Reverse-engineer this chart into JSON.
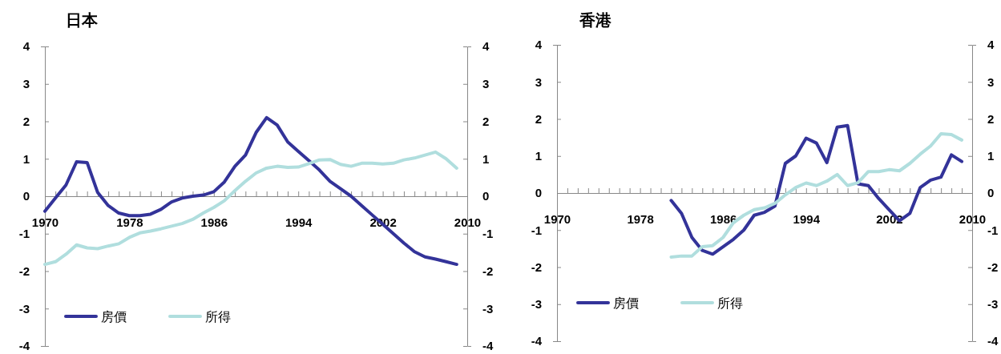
{
  "chart_data": [
    {
      "type": "line",
      "title": "日本",
      "x": [
        1970,
        1971,
        1972,
        1973,
        1974,
        1975,
        1976,
        1977,
        1978,
        1979,
        1980,
        1981,
        1982,
        1983,
        1984,
        1985,
        1986,
        1987,
        1988,
        1989,
        1990,
        1991,
        1992,
        1993,
        1994,
        1995,
        1996,
        1997,
        1998,
        1999,
        2000,
        2001,
        2002,
        2003,
        2004,
        2005,
        2006,
        2007,
        2008,
        2009
      ],
      "series": [
        {
          "name": "房價",
          "color": "#333399",
          "values": [
            -0.4,
            -0.05,
            0.3,
            0.92,
            0.9,
            0.1,
            -0.25,
            -0.45,
            -0.52,
            -0.52,
            -0.48,
            -0.35,
            -0.15,
            -0.05,
            0.0,
            0.03,
            0.12,
            0.38,
            0.8,
            1.1,
            1.7,
            2.1,
            1.9,
            1.45,
            1.2,
            0.95,
            0.7,
            0.4,
            0.2,
            0.0,
            -0.25,
            -0.5,
            -0.75,
            -1.0,
            -1.25,
            -1.48,
            -1.62,
            -1.68,
            -1.75,
            -1.82
          ]
        },
        {
          "name": "所得",
          "color": "#b0dede",
          "values": [
            -1.82,
            -1.75,
            -1.55,
            -1.3,
            -1.38,
            -1.4,
            -1.33,
            -1.27,
            -1.1,
            -0.98,
            -0.93,
            -0.87,
            -0.8,
            -0.73,
            -0.62,
            -0.45,
            -0.3,
            -0.12,
            0.15,
            0.4,
            0.62,
            0.75,
            0.8,
            0.77,
            0.78,
            0.87,
            0.97,
            0.98,
            0.85,
            0.8,
            0.88,
            0.88,
            0.86,
            0.88,
            0.97,
            1.02,
            1.1,
            1.18,
            1.0,
            0.75
          ]
        }
      ],
      "xlim": [
        1970,
        2010
      ],
      "xticks": [
        1970,
        {
          "value": 1971,
          "label": null
        },
        {
          "value": 1972,
          "label": null
        },
        {
          "value": 1973,
          "label": null
        },
        {
          "value": 1974,
          "label": null
        },
        {
          "value": 1975,
          "label": null
        },
        {
          "value": 1976,
          "label": null
        },
        {
          "value": 1977,
          "label": null
        },
        1978,
        {
          "value": 1979,
          "label": null
        },
        {
          "value": 1980,
          "label": null
        },
        {
          "value": 1981,
          "label": null
        },
        {
          "value": 1982,
          "label": null
        },
        {
          "value": 1983,
          "label": null
        },
        {
          "value": 1984,
          "label": null
        },
        {
          "value": 1985,
          "label": null
        },
        1986,
        {
          "value": 1987,
          "label": null
        },
        {
          "value": 1988,
          "label": null
        },
        {
          "value": 1989,
          "label": null
        },
        {
          "value": 1990,
          "label": null
        },
        {
          "value": 1991,
          "label": null
        },
        {
          "value": 1992,
          "label": null
        },
        {
          "value": 1993,
          "label": null
        },
        1994,
        {
          "value": 1995,
          "label": null
        },
        {
          "value": 1996,
          "label": null
        },
        {
          "value": 1997,
          "label": null
        },
        {
          "value": 1998,
          "label": null
        },
        {
          "value": 1999,
          "label": null
        },
        {
          "value": 2000,
          "label": null
        },
        {
          "value": 2001,
          "label": null
        },
        2002,
        {
          "value": 2003,
          "label": null
        },
        {
          "value": 2004,
          "label": null
        },
        {
          "value": 2005,
          "label": null
        },
        {
          "value": 2006,
          "label": null
        },
        {
          "value": 2007,
          "label": null
        },
        {
          "value": 2008,
          "label": null
        },
        {
          "value": 2009,
          "label": null
        },
        2010
      ],
      "ylim": [
        -4,
        4
      ],
      "yticks": [
        -4,
        -3,
        -2,
        -1,
        0,
        1,
        2,
        3,
        4
      ],
      "y2lim": [
        -4,
        4
      ],
      "y2ticks": [
        -4,
        -3,
        -2,
        -1,
        0,
        1,
        2,
        3,
        4
      ],
      "grid": false,
      "legend": "bottom left",
      "marker": "none",
      "line_style": "solid"
    },
    {
      "type": "line",
      "title": "香港",
      "x": [
        1981,
        1982,
        1983,
        1984,
        1985,
        1986,
        1987,
        1988,
        1989,
        1990,
        1991,
        1992,
        1993,
        1994,
        1995,
        1996,
        1997,
        1998,
        1999,
        2000,
        2001,
        2002,
        2003,
        2004,
        2005,
        2006,
        2007,
        2008,
        2009
      ],
      "series": [
        {
          "name": "房價",
          "color": "#333399",
          "values": [
            -0.2,
            -0.55,
            -1.2,
            -1.55,
            -1.65,
            -1.45,
            -1.25,
            -1.0,
            -0.6,
            -0.52,
            -0.35,
            0.8,
            1.0,
            1.48,
            1.35,
            0.82,
            1.78,
            1.82,
            0.25,
            0.2,
            -0.15,
            -0.45,
            -0.75,
            -0.55,
            0.15,
            0.35,
            0.43,
            1.03,
            0.85
          ]
        },
        {
          "name": "所得",
          "color": "#b0dede",
          "values": [
            -1.73,
            -1.7,
            -1.7,
            -1.45,
            -1.42,
            -1.2,
            -0.8,
            -0.6,
            -0.45,
            -0.4,
            -0.28,
            -0.05,
            0.15,
            0.27,
            0.2,
            0.32,
            0.5,
            0.2,
            0.28,
            0.58,
            0.58,
            0.63,
            0.6,
            0.8,
            1.05,
            1.27,
            1.6,
            1.58,
            1.43
          ]
        }
      ],
      "xlim": [
        1970,
        2010
      ],
      "xticks": [
        1970,
        {
          "value": 1971,
          "label": null
        },
        {
          "value": 1972,
          "label": null
        },
        {
          "value": 1973,
          "label": null
        },
        {
          "value": 1974,
          "label": null
        },
        {
          "value": 1975,
          "label": null
        },
        {
          "value": 1976,
          "label": null
        },
        {
          "value": 1977,
          "label": null
        },
        1978,
        {
          "value": 1979,
          "label": null
        },
        {
          "value": 1980,
          "label": null
        },
        {
          "value": 1981,
          "label": null
        },
        {
          "value": 1982,
          "label": null
        },
        {
          "value": 1983,
          "label": null
        },
        {
          "value": 1984,
          "label": null
        },
        {
          "value": 1985,
          "label": null
        },
        1986,
        {
          "value": 1987,
          "label": null
        },
        {
          "value": 1988,
          "label": null
        },
        {
          "value": 1989,
          "label": null
        },
        {
          "value": 1990,
          "label": null
        },
        {
          "value": 1991,
          "label": null
        },
        {
          "value": 1992,
          "label": null
        },
        {
          "value": 1993,
          "label": null
        },
        1994,
        {
          "value": 1995,
          "label": null
        },
        {
          "value": 1996,
          "label": null
        },
        {
          "value": 1997,
          "label": null
        },
        {
          "value": 1998,
          "label": null
        },
        {
          "value": 1999,
          "label": null
        },
        {
          "value": 2000,
          "label": null
        },
        {
          "value": 2001,
          "label": null
        },
        2002,
        {
          "value": 2003,
          "label": null
        },
        {
          "value": 2004,
          "label": null
        },
        {
          "value": 2005,
          "label": null
        },
        {
          "value": 2006,
          "label": null
        },
        {
          "value": 2007,
          "label": null
        },
        {
          "value": 2008,
          "label": null
        },
        {
          "value": 2009,
          "label": null
        },
        2010
      ],
      "ylim": [
        -4,
        4
      ],
      "yticks": [
        -4,
        -3,
        -2,
        -1,
        0,
        1,
        2,
        3,
        4
      ],
      "y2lim": [
        -4,
        4
      ],
      "y2ticks": [
        -4,
        -3,
        -2,
        -1,
        0,
        1,
        2,
        3,
        4
      ],
      "grid": false,
      "legend": "bottom left",
      "marker": "none",
      "line_style": "solid"
    }
  ]
}
